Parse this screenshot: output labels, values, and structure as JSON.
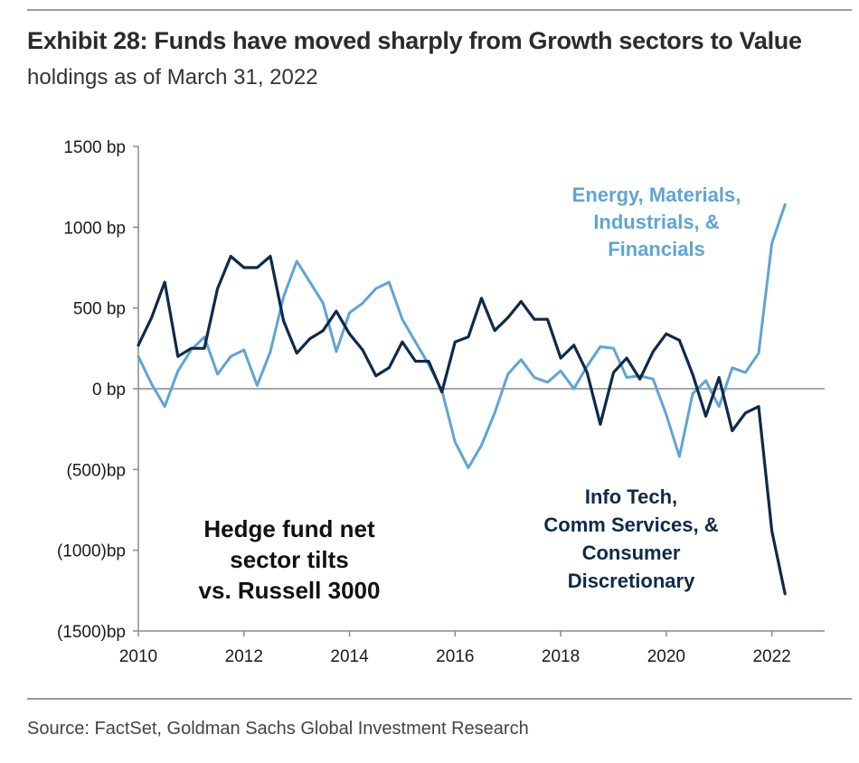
{
  "header": {
    "title": "Exhibit 28: Funds have moved sharply from Growth sectors to Value",
    "subtitle": "holdings as of March 31, 2022"
  },
  "footer": {
    "source": "Source: FactSet, Goldman Sachs Global Investment Research"
  },
  "chart_data": {
    "type": "line",
    "title": "Exhibit 28: Funds have moved sharply from Growth sectors to Value",
    "subtitle": "holdings as of March 31, 2022",
    "xlabel": "",
    "ylabel": "",
    "xlim": [
      2010,
      2023
    ],
    "ylim": [
      -1500,
      1500
    ],
    "grid": false,
    "legend": "none",
    "x_ticks": [
      "2010",
      "2012",
      "2014",
      "2016",
      "2018",
      "2020",
      "2022"
    ],
    "y_ticks": [
      {
        "value": 1500,
        "label": "1500 bp"
      },
      {
        "value": 1000,
        "label": "1000 bp"
      },
      {
        "value": 500,
        "label": "500 bp"
      },
      {
        "value": 0,
        "label": "0 bp"
      },
      {
        "value": -500,
        "label": "(500)bp"
      },
      {
        "value": -1000,
        "label": "(1000)bp"
      },
      {
        "value": -1500,
        "label": "(1500)bp"
      }
    ],
    "annotations": {
      "light": [
        "Energy, Materials,",
        "Industrials, &",
        "Financials"
      ],
      "dark": [
        "Info Tech,",
        "Comm Services, &",
        "Consumer",
        "Discretionary"
      ],
      "note": [
        "Hedge fund net",
        "sector tilts",
        "vs. Russell 3000"
      ]
    },
    "series": [
      {
        "name": "Energy, Materials, Industrials, & Financials",
        "color": "#5fa4d6",
        "x": [
          2010.0,
          2010.25,
          2010.5,
          2010.75,
          2011.0,
          2011.25,
          2011.5,
          2011.75,
          2012.0,
          2012.25,
          2012.5,
          2012.75,
          2013.0,
          2013.25,
          2013.5,
          2013.75,
          2014.0,
          2014.25,
          2014.5,
          2014.75,
          2015.0,
          2015.25,
          2015.5,
          2015.75,
          2016.0,
          2016.25,
          2016.5,
          2016.75,
          2017.0,
          2017.25,
          2017.5,
          2017.75,
          2018.0,
          2018.25,
          2018.5,
          2018.75,
          2019.0,
          2019.25,
          2019.5,
          2019.75,
          2020.0,
          2020.25,
          2020.5,
          2020.75,
          2021.0,
          2021.25,
          2021.5,
          2021.75,
          2022.0,
          2022.25
        ],
        "y": [
          200,
          30,
          -110,
          110,
          240,
          320,
          90,
          200,
          240,
          20,
          230,
          570,
          790,
          660,
          530,
          230,
          470,
          530,
          620,
          660,
          430,
          290,
          150,
          -10,
          -330,
          -490,
          -350,
          -150,
          90,
          180,
          70,
          40,
          110,
          0,
          140,
          260,
          250,
          70,
          80,
          60,
          -160,
          -420,
          -30,
          50,
          -110,
          130,
          100,
          220,
          900,
          1140
        ]
      },
      {
        "name": "Info Tech, Comm Services, & Consumer Discretionary",
        "color": "#0d2a4a",
        "x": [
          2010.0,
          2010.25,
          2010.5,
          2010.75,
          2011.0,
          2011.25,
          2011.5,
          2011.75,
          2012.0,
          2012.25,
          2012.5,
          2012.75,
          2013.0,
          2013.25,
          2013.5,
          2013.75,
          2014.0,
          2014.25,
          2014.5,
          2014.75,
          2015.0,
          2015.25,
          2015.5,
          2015.75,
          2016.0,
          2016.25,
          2016.5,
          2016.75,
          2017.0,
          2017.25,
          2017.5,
          2017.75,
          2018.0,
          2018.25,
          2018.5,
          2018.75,
          2019.0,
          2019.25,
          2019.5,
          2019.75,
          2020.0,
          2020.25,
          2020.5,
          2020.75,
          2021.0,
          2021.25,
          2021.5,
          2021.75,
          2022.0,
          2022.25
        ],
        "y": [
          270,
          440,
          660,
          200,
          250,
          250,
          620,
          820,
          750,
          750,
          820,
          420,
          220,
          310,
          360,
          480,
          340,
          240,
          80,
          130,
          290,
          170,
          170,
          -20,
          290,
          320,
          560,
          360,
          440,
          540,
          430,
          430,
          190,
          270,
          100,
          -220,
          100,
          190,
          60,
          230,
          340,
          300,
          90,
          -170,
          70,
          -260,
          -150,
          -110,
          -880,
          -1270
        ]
      }
    ]
  }
}
